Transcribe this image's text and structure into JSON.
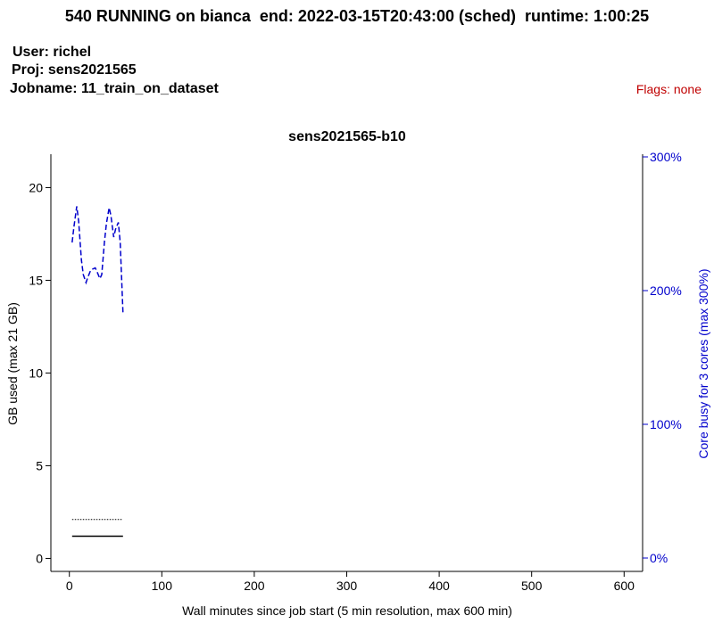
{
  "header": {
    "title": "540 RUNNING on bianca  end: 2022-03-15T20:43:00 (sched)  runtime: 1:00:25",
    "user_line": "User: richel",
    "proj_line": "Proj: sens2021565",
    "jobname_line": "Jobname: 11_train_on_dataset",
    "flags_text": "Flags: none",
    "flags_color": "#c00000"
  },
  "chart_data": {
    "type": "line",
    "title": "sens2021565-b10",
    "xlabel": "Wall minutes since job start (5 min resolution, max 600 min)",
    "ylabel_left": "GB used (max 21 GB)",
    "ylabel_right": "Core busy for 3 cores (max 300%)",
    "xlim": [
      -20,
      620
    ],
    "ylim_left": [
      -0.7,
      21.8
    ],
    "ylim_right": [
      -10,
      302
    ],
    "x_ticks": [
      0,
      100,
      200,
      300,
      400,
      500,
      600
    ],
    "x_tick_labels": [
      "0",
      "100",
      "200",
      "300",
      "400",
      "500",
      "600"
    ],
    "y_left_ticks": [
      0,
      5,
      10,
      15,
      20
    ],
    "y_left_tick_labels": [
      "0",
      "5",
      "10",
      "15",
      "20"
    ],
    "y_right_ticks": [
      0,
      100,
      200,
      300
    ],
    "y_right_tick_labels": [
      "0%",
      "100%",
      "200%",
      "300%"
    ],
    "right_axis_color": "#0000cc",
    "series": [
      {
        "axis": "left",
        "style": "solid",
        "color": "#000000",
        "x": [
          3,
          58
        ],
        "y": [
          1.2,
          1.2
        ]
      },
      {
        "axis": "left",
        "style": "dotted",
        "color": "#000000",
        "x": [
          3,
          58
        ],
        "y": [
          2.1,
          2.1
        ]
      },
      {
        "axis": "right",
        "style": "dashed",
        "color": "#0000cc",
        "x": [
          3,
          5,
          8,
          10,
          13,
          15,
          18,
          20,
          23,
          25,
          28,
          30,
          33,
          35,
          38,
          40,
          43,
          45,
          48,
          50,
          53,
          55,
          58
        ],
        "y": [
          236,
          248,
          263,
          252,
          223,
          212,
          206,
          210,
          215,
          216,
          217,
          214,
          209,
          212,
          237,
          250,
          262,
          256,
          240,
          246,
          251,
          236,
          183
        ]
      }
    ]
  }
}
